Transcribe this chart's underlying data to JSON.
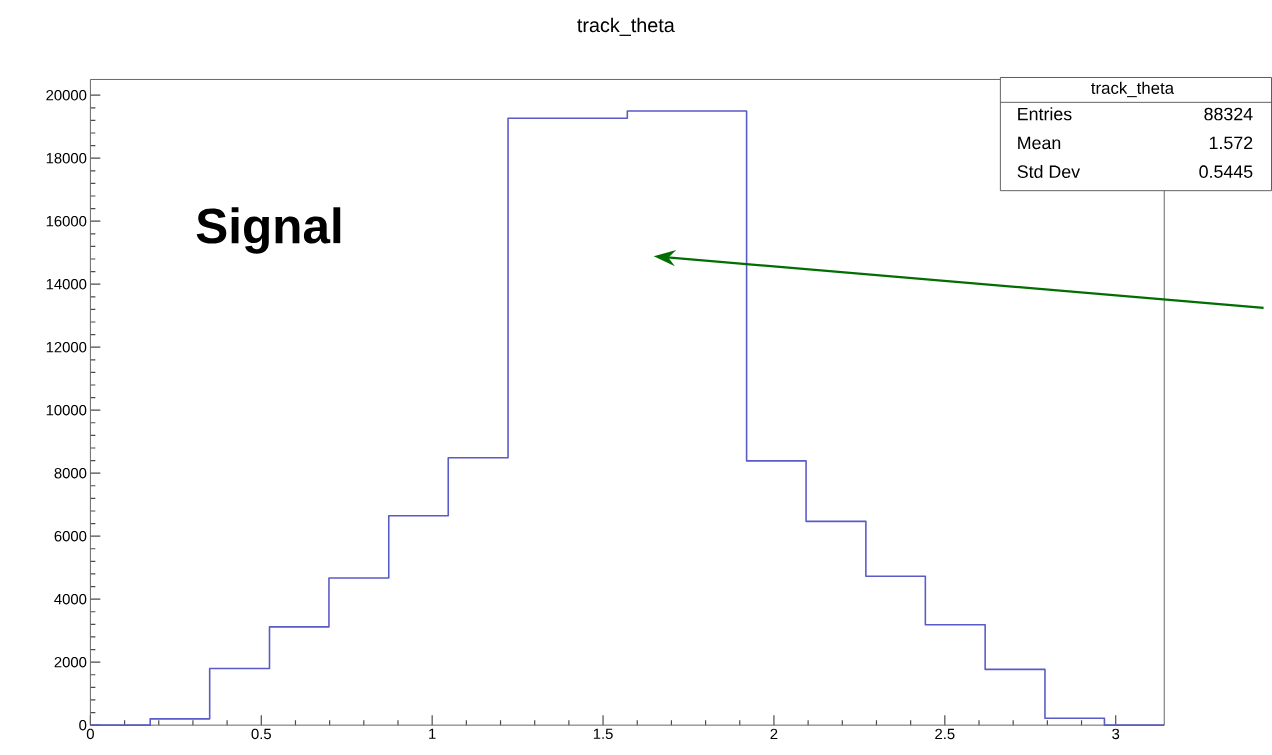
{
  "chart_data": {
    "type": "histogram",
    "title": "track_theta",
    "bins": [
      0,
      0.175,
      0.349,
      0.524,
      0.698,
      0.873,
      1.047,
      1.222,
      1.571,
      1.92,
      2.094,
      2.269,
      2.443,
      2.618,
      2.793,
      2.967,
      3.142
    ],
    "values": [
      0,
      200,
      1800,
      3120,
      4670,
      6650,
      8490,
      19270,
      19500,
      8390,
      6470,
      4730,
      3190,
      1770,
      220,
      0
    ],
    "color": "#5b5bc8",
    "xlim": [
      0,
      3.142
    ],
    "ylim": [
      0,
      20500
    ],
    "xticks": [
      0,
      0.5,
      1,
      1.5,
      2,
      2.5,
      3
    ],
    "yticks": [
      0,
      2000,
      4000,
      6000,
      8000,
      10000,
      12000,
      14000,
      16000,
      18000,
      20000
    ],
    "annotations": [
      "Signal",
      "track_theta",
      "Entries",
      "88324",
      "Mean",
      "1.572",
      "Std Dev",
      "0.5445"
    ]
  }
}
